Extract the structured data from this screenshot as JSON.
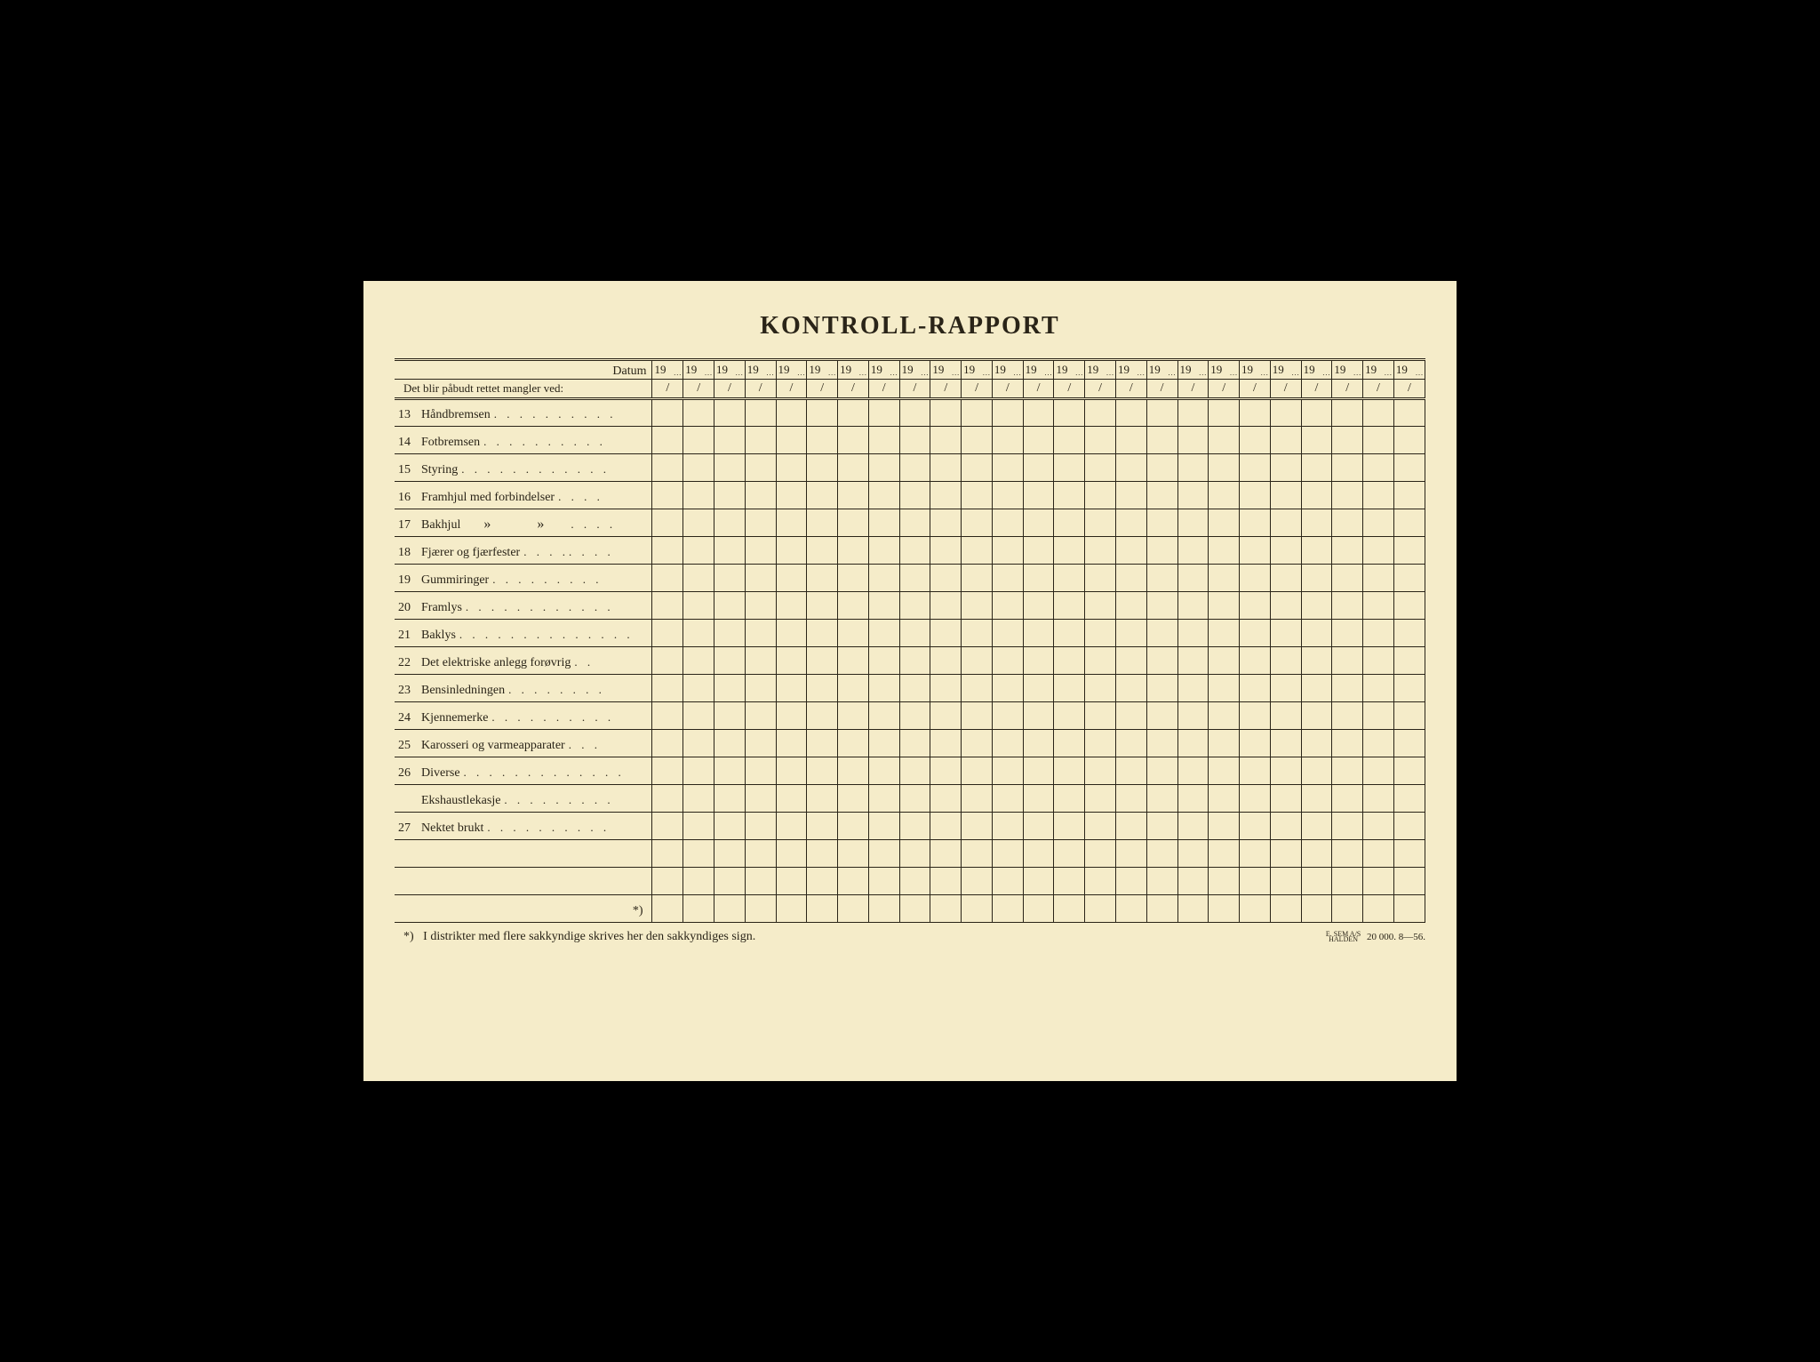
{
  "title": "KONTROLL-RAPPORT",
  "header": {
    "datum_label": "Datum",
    "mangler_label": "Det blir påbudt rettet mangler ved:",
    "year_prefix": "19",
    "slash": "/",
    "num_date_columns": 25
  },
  "rows": [
    {
      "num": "13",
      "text": "Håndbremsen",
      "dots": ". . . . . . . . . ."
    },
    {
      "num": "14",
      "text": "Fotbremsen",
      "dots": " . . . . . . . . . ."
    },
    {
      "num": "15",
      "text": "Styring",
      "dots": " . . . . . . . . . . . ."
    },
    {
      "num": "16",
      "text": "Framhjul med forbindelser",
      "dots": ". . . ."
    },
    {
      "num": "17",
      "text": "Bakhjul",
      "ditto": true,
      "dots": " . . . ."
    },
    {
      "num": "18",
      "text": "Fjærer og fjærfester",
      "dots": ". . . .. . . ."
    },
    {
      "num": "19",
      "text": "Gummiringer",
      "dots": " . . . . . . . . ."
    },
    {
      "num": "20",
      "text": "Framlys",
      "dots": ". . . . . . . . . . . ."
    },
    {
      "num": "21",
      "text": "Baklys",
      "dots": ". . . . . . . . . . . . . ."
    },
    {
      "num": "22",
      "text": "Det elektriske anlegg forøvrig",
      "dots": " . ."
    },
    {
      "num": "23",
      "text": "Bensinledningen",
      "dots": " . . . . . . . ."
    },
    {
      "num": "24",
      "text": "Kjennemerke",
      "dots": ". . . . . . . . . ."
    },
    {
      "num": "25",
      "text": "Karosseri og varmeapparater",
      "dots": " . . ."
    },
    {
      "num": "26",
      "text": "Diverse",
      "dots": " . . . . . . . . . . . . ."
    },
    {
      "num": "",
      "text": "Ekshaustlekasje",
      "dots": ". . . . . . . . ."
    },
    {
      "num": "27",
      "text": "Nektet brukt",
      "dots": ". . . . . . . . . ."
    },
    {
      "num": "",
      "text": "",
      "dots": ""
    },
    {
      "num": "",
      "text": "",
      "dots": ""
    }
  ],
  "asterisk_row_label": "*)",
  "footnote": {
    "marker": "*)",
    "text": "I distrikter med flere sakkyndige skrives her den sakkyndiges sign.",
    "publisher_line1": "E. SEM A/S",
    "publisher_line2": "HALDEN",
    "print_info": "20 000.   8—56."
  },
  "colors": {
    "page_bg": "#f5ecc9",
    "frame_bg": "#000000",
    "ink": "#2a2418"
  }
}
